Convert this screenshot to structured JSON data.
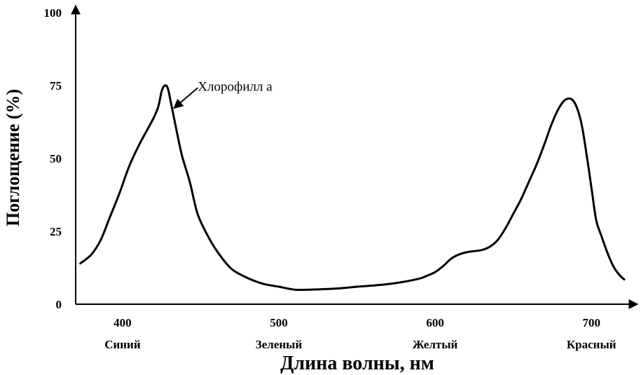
{
  "chart_data": {
    "type": "line",
    "xlabel": "Длина волны, нм",
    "ylabel": "Поглощение (%)",
    "xlim": [
      370,
      725
    ],
    "ylim": [
      0,
      100
    ],
    "x_ticks": [
      "400",
      "500",
      "600",
      "700"
    ],
    "x_tick_values": [
      400,
      500,
      600,
      700
    ],
    "y_ticks": [
      "0",
      "25",
      "50",
      "75",
      "100"
    ],
    "y_tick_values": [
      0,
      25,
      50,
      75,
      100
    ],
    "color_bands": [
      "Синий",
      "Зеленый",
      "Желтый",
      "Красный"
    ],
    "grid": false,
    "series": [
      {
        "name": "Хлорофилл а",
        "x": [
          373,
          380,
          386,
          392,
          398,
          404,
          410,
          416,
          420,
          423,
          425,
          427,
          429,
          431,
          434,
          438,
          443,
          448,
          455,
          462,
          470,
          480,
          490,
          500,
          510,
          520,
          530,
          540,
          550,
          560,
          570,
          580,
          590,
          595,
          600,
          605,
          610,
          615,
          620,
          625,
          630,
          635,
          640,
          645,
          650,
          655,
          660,
          665,
          670,
          674,
          678,
          682,
          685,
          688,
          691,
          694,
          697,
          700,
          703,
          706,
          710,
          714,
          718,
          721
        ],
        "values": [
          14,
          17,
          22,
          30,
          38,
          47,
          54,
          60,
          64,
          68,
          73,
          75,
          74,
          69,
          61,
          51,
          42,
          31,
          23,
          17,
          12,
          9,
          7,
          6,
          5,
          5,
          5.2,
          5.5,
          6,
          6.4,
          6.9,
          7.7,
          8.8,
          9.8,
          11,
          13,
          15.5,
          17,
          17.8,
          18.2,
          18.6,
          19.7,
          22,
          26,
          31,
          36,
          42,
          48,
          55,
          61,
          66,
          69.5,
          70.5,
          70,
          67,
          61,
          51,
          40,
          29,
          24,
          18,
          13,
          10,
          8.5
        ]
      }
    ],
    "annotations": [
      {
        "text": "Хлорофилл а",
        "points_to": {
          "x": 432,
          "y": 67
        }
      }
    ]
  }
}
